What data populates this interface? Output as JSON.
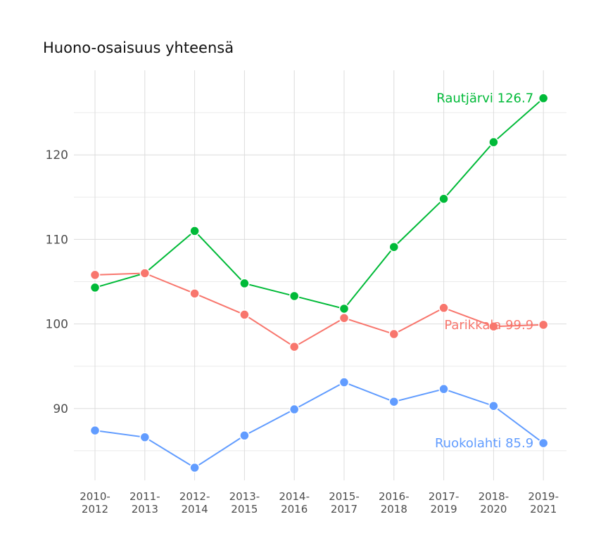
{
  "chart_data": {
    "type": "line",
    "title": "Huono-osaisuus yhteensä",
    "xlabel": "",
    "ylabel": "",
    "categories": [
      [
        "2010-",
        "2012"
      ],
      [
        "2011-",
        "2013"
      ],
      [
        "2012-",
        "2014"
      ],
      [
        "2013-",
        "2015"
      ],
      [
        "2014-",
        "2016"
      ],
      [
        "2015-",
        "2017"
      ],
      [
        "2016-",
        "2018"
      ],
      [
        "2017-",
        "2019"
      ],
      [
        "2018-",
        "2020"
      ],
      [
        "2019-",
        "2021"
      ]
    ],
    "yticks": [
      90,
      100,
      110,
      120
    ],
    "ylim": [
      81.5,
      130
    ],
    "grid": true,
    "legend": "none (labels at line ends)",
    "series": [
      {
        "name": "Rautjärvi",
        "color": "#00ba38",
        "end_label": "Rautjärvi 126.7",
        "values": [
          104.3,
          106.0,
          111.0,
          104.8,
          103.3,
          101.8,
          109.1,
          114.8,
          121.5,
          126.7
        ]
      },
      {
        "name": "Parikkala",
        "color": "#f8766d",
        "end_label": "Parikkala 99.9",
        "values": [
          105.8,
          106.0,
          103.6,
          101.1,
          97.3,
          100.7,
          98.8,
          101.9,
          99.7,
          99.9
        ]
      },
      {
        "name": "Ruokolahti",
        "color": "#619cff",
        "end_label": "Ruokolahti 85.9",
        "values": [
          87.4,
          86.6,
          83.0,
          86.8,
          89.9,
          93.1,
          90.8,
          92.3,
          90.3,
          85.9
        ]
      }
    ]
  }
}
